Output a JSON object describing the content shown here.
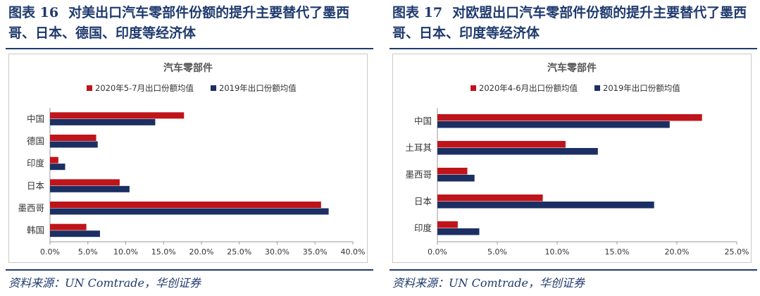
{
  "colors": {
    "primary_series": "#c0141b",
    "secondary_series": "#1c2f63",
    "title": "#1f3a6e",
    "text": "#333333"
  },
  "panels": [
    {
      "fig_label": "图表 16",
      "fig_title": "对美出口汽车零部件份额的提升主要替代了墨西哥、日本、德国、印度等经济体",
      "source": "资料来源：UN Comtrade，华创证券"
    },
    {
      "fig_label": "图表 17",
      "fig_title": "对欧盟出口汽车零部件份额的提升主要替代了墨西哥、日本、印度等经济体",
      "source": "资料来源：UN Comtrade，华创证券"
    }
  ],
  "chart_data": [
    {
      "type": "bar",
      "orientation": "horizontal",
      "title": "汽车零部件",
      "categories": [
        "中国",
        "德国",
        "印度",
        "日本",
        "墨西哥",
        "韩国"
      ],
      "series": [
        {
          "name": "2020年5-7月出口份额均值",
          "values": [
            17.7,
            6.1,
            1.1,
            9.2,
            35.8,
            4.8
          ]
        },
        {
          "name": "2019年出口份额均值",
          "values": [
            13.9,
            6.3,
            2.0,
            10.5,
            36.8,
            6.6
          ]
        }
      ],
      "xlim": [
        0,
        40
      ],
      "xticks": [
        "0.0%",
        "5.0%",
        "10.0%",
        "15.0%",
        "20.0%",
        "25.0%",
        "30.0%",
        "35.0%",
        "40.0%"
      ],
      "legend": "top"
    },
    {
      "type": "bar",
      "orientation": "horizontal",
      "title": "汽车零部件",
      "categories": [
        "中国",
        "土耳其",
        "墨西哥",
        "日本",
        "印度"
      ],
      "series": [
        {
          "name": "2020年4-6月出口份额均值",
          "values": [
            22.1,
            10.7,
            2.5,
            8.8,
            1.7
          ]
        },
        {
          "name": "2019年出口份额均值",
          "values": [
            19.4,
            13.4,
            3.1,
            18.1,
            3.5
          ]
        }
      ],
      "xlim": [
        0,
        25
      ],
      "xticks": [
        "0.0%",
        "5.0%",
        "10.0%",
        "15.0%",
        "20.0%",
        "25.0%"
      ],
      "legend": "top"
    }
  ]
}
